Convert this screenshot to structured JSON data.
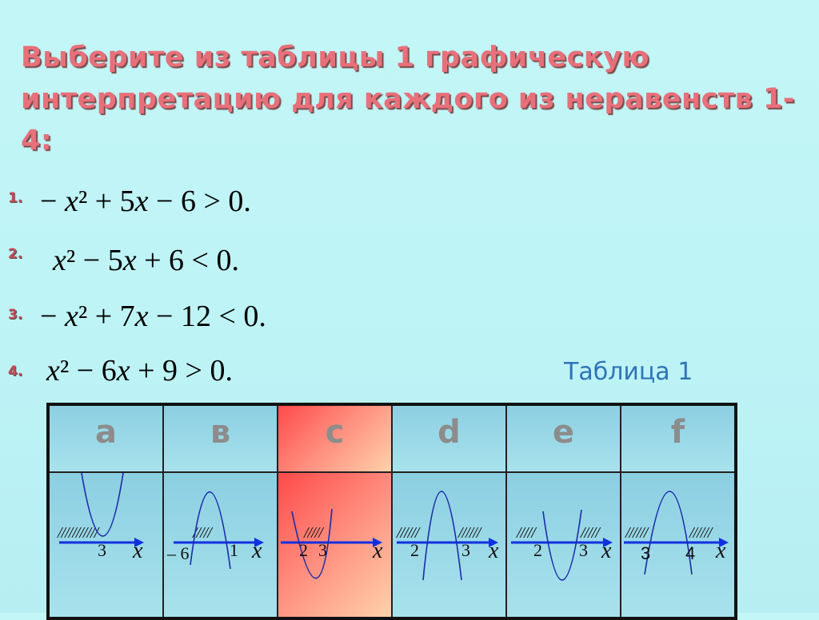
{
  "title": {
    "line1": "Выберите из таблицы 1 графическую",
    "line2": "интерпретацию для каждого из неравенств 1-4:"
  },
  "inequalities": [
    {
      "number": "1.",
      "text": "− x² + 5x − 6 > 0."
    },
    {
      "number": "2.",
      "text": "x² − 5x + 6 < 0."
    },
    {
      "number": "3.",
      "text": "− x² + 7x − 12 < 0."
    },
    {
      "number": "4.",
      "text": "x² − 6x + 9 > 0."
    }
  ],
  "table": {
    "caption": "Таблица 1",
    "highlight_color": "#ff5a5a",
    "columns": [
      {
        "letter": "a",
        "parabola": "up",
        "hatch": [
          "///////////"
        ],
        "labels": [
          "3"
        ],
        "axis_label": "x"
      },
      {
        "letter": "в",
        "parabola": "down",
        "hatch": [
          "/////"
        ],
        "labels": [
          "– 6",
          "1"
        ],
        "axis_label": "x"
      },
      {
        "letter": "c",
        "parabola": "up",
        "hatch": [
          "/////"
        ],
        "labels": [
          "2",
          "3"
        ],
        "axis_label": "x",
        "highlighted": true
      },
      {
        "letter": "d",
        "parabola": "down",
        "hatch": [
          "//////",
          "//////"
        ],
        "labels": [
          "2",
          "3"
        ],
        "axis_label": "x"
      },
      {
        "letter": "e",
        "parabola": "up",
        "hatch": [
          "/////",
          "/////"
        ],
        "labels": [
          "2",
          "3"
        ],
        "axis_label": "x"
      },
      {
        "letter": "f",
        "parabola": "down",
        "hatch": [
          "//////",
          "//////"
        ],
        "labels": [
          "3",
          "4"
        ],
        "axis_label": "x"
      }
    ]
  }
}
